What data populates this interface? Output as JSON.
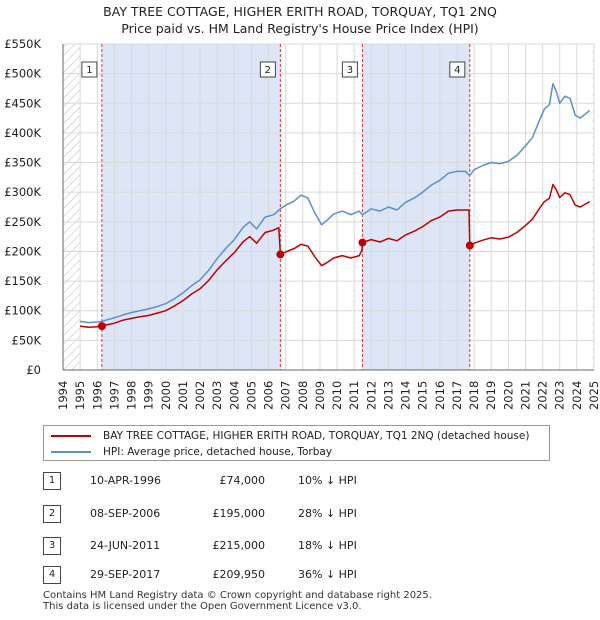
{
  "header": {
    "title": "BAY TREE COTTAGE, HIGHER ERITH ROAD, TORQUAY, TQ1 2NQ",
    "subtitle": "Price paid vs. HM Land Registry's House Price Index (HPI)"
  },
  "colors": {
    "property": "#c00000",
    "hpi": "#5b8fd0",
    "shade": "#dde6f6",
    "grid": "#d9d9d9",
    "marker_line": "#e03030"
  },
  "chart_data": {
    "type": "line",
    "title": "BAY TREE COTTAGE, HIGHER ERITH ROAD, TORQUAY, TQ1 2NQ",
    "subtitle": "Price paid vs. HM Land Registry's House Price Index (HPI)",
    "xlabel": "",
    "ylabel": "",
    "xlim": [
      1994,
      2025
    ],
    "ylim": [
      0,
      550000
    ],
    "x_ticks": [
      1994,
      1995,
      1996,
      1997,
      1998,
      1999,
      2000,
      2001,
      2002,
      2003,
      2004,
      2005,
      2006,
      2007,
      2008,
      2009,
      2010,
      2011,
      2012,
      2013,
      2014,
      2015,
      2016,
      2017,
      2018,
      2019,
      2020,
      2021,
      2022,
      2023,
      2024,
      2025
    ],
    "y_ticks": [
      {
        "value": 0,
        "label": "£0"
      },
      {
        "value": 50000,
        "label": "£50K"
      },
      {
        "value": 100000,
        "label": "£100K"
      },
      {
        "value": 150000,
        "label": "£150K"
      },
      {
        "value": 200000,
        "label": "£200K"
      },
      {
        "value": 250000,
        "label": "£250K"
      },
      {
        "value": 300000,
        "label": "£300K"
      },
      {
        "value": 350000,
        "label": "£350K"
      },
      {
        "value": 400000,
        "label": "£400K"
      },
      {
        "value": 450000,
        "label": "£450K"
      },
      {
        "value": 500000,
        "label": "£500K"
      },
      {
        "value": 550000,
        "label": "£550K"
      }
    ],
    "grid": true,
    "hatched_ranges": [
      [
        1994,
        1995.0
      ],
      [
        2024.9,
        2025
      ]
    ],
    "series": [
      {
        "name": "HPI: Average price, detached house, Torbay",
        "color": "#5b8fd0",
        "x": [
          1995.0,
          1995.5,
          1996.0,
          1996.27,
          1996.5,
          1997.0,
          1997.5,
          1998.0,
          1998.5,
          1999.0,
          1999.5,
          2000.0,
          2000.5,
          2001.0,
          2001.5,
          2002.0,
          2002.5,
          2003.0,
          2003.5,
          2004.0,
          2004.5,
          2004.9,
          2005.3,
          2005.8,
          2006.3,
          2006.69,
          2007.0,
          2007.5,
          2007.9,
          2008.3,
          2008.7,
          2009.1,
          2009.4,
          2009.8,
          2010.3,
          2010.8,
          2011.3,
          2011.48,
          2012.0,
          2012.5,
          2013.0,
          2013.5,
          2014.0,
          2014.5,
          2015.0,
          2015.5,
          2016.0,
          2016.5,
          2017.0,
          2017.5,
          2017.75,
          2018.0,
          2018.5,
          2019.0,
          2019.5,
          2020.0,
          2020.5,
          2021.0,
          2021.4,
          2021.8,
          2022.1,
          2022.4,
          2022.6,
          2022.8,
          2023.0,
          2023.3,
          2023.6,
          2023.9,
          2024.2,
          2024.5,
          2024.75
        ],
        "values": [
          82000,
          80000,
          81000,
          82000,
          84000,
          88000,
          93000,
          97000,
          100000,
          103000,
          107000,
          112000,
          120000,
          130000,
          142000,
          152000,
          168000,
          188000,
          205000,
          220000,
          240000,
          250000,
          238000,
          258000,
          262000,
          272000,
          278000,
          285000,
          295000,
          290000,
          265000,
          245000,
          252000,
          263000,
          268000,
          262000,
          268000,
          262000,
          272000,
          268000,
          275000,
          270000,
          283000,
          290000,
          300000,
          312000,
          320000,
          332000,
          335000,
          335000,
          328000,
          338000,
          345000,
          350000,
          348000,
          352000,
          362000,
          378000,
          392000,
          420000,
          440000,
          448000,
          483000,
          470000,
          450000,
          462000,
          458000,
          430000,
          425000,
          432000,
          438000
        ]
      },
      {
        "name": "BAY TREE COTTAGE, HIGHER ERITH ROAD, TORQUAY, TQ1 2NQ (detached house)",
        "color": "#c00000",
        "x": [
          1995.0,
          1995.5,
          1996.0,
          1996.27,
          1996.5,
          1997.0,
          1997.5,
          1998.0,
          1998.5,
          1999.0,
          1999.5,
          2000.0,
          2000.5,
          2001.0,
          2001.5,
          2002.0,
          2002.5,
          2003.0,
          2003.5,
          2004.0,
          2004.5,
          2004.9,
          2005.3,
          2005.8,
          2006.3,
          2006.6,
          2006.69,
          2007.0,
          2007.5,
          2007.9,
          2008.3,
          2008.7,
          2009.1,
          2009.4,
          2009.8,
          2010.3,
          2010.8,
          2011.3,
          2011.45,
          2011.48,
          2012.0,
          2012.5,
          2013.0,
          2013.5,
          2014.0,
          2014.5,
          2015.0,
          2015.5,
          2016.0,
          2016.5,
          2017.0,
          2017.5,
          2017.7,
          2017.75,
          2018.0,
          2018.5,
          2019.0,
          2019.5,
          2020.0,
          2020.5,
          2021.0,
          2021.4,
          2021.8,
          2022.1,
          2022.4,
          2022.6,
          2022.8,
          2023.0,
          2023.3,
          2023.6,
          2023.9,
          2024.2,
          2024.5,
          2024.75
        ],
        "values": [
          74000,
          72000,
          73000,
          74000,
          76000,
          79000,
          84000,
          87000,
          90000,
          92000,
          96000,
          100000,
          108000,
          117000,
          128000,
          137000,
          151000,
          169000,
          184000,
          198000,
          216000,
          225000,
          214000,
          232000,
          236000,
          240000,
          195000,
          199000,
          205000,
          212000,
          209000,
          191000,
          176000,
          181000,
          189000,
          193000,
          189000,
          193000,
          202000,
          215000,
          220000,
          216000,
          222000,
          218000,
          228000,
          234000,
          242000,
          252000,
          258000,
          268000,
          270000,
          270000,
          270000,
          209950,
          214000,
          219000,
          223000,
          221000,
          224000,
          232000,
          244000,
          254000,
          272000,
          284000,
          290000,
          313000,
          304000,
          291000,
          299000,
          296000,
          278000,
          275000,
          280000,
          284000
        ]
      }
    ],
    "sales": [
      {
        "num": "1",
        "x": 1996.27,
        "value": 74000
      },
      {
        "num": "2",
        "x": 2006.69,
        "value": 195000
      },
      {
        "num": "3",
        "x": 2011.48,
        "value": 215000
      },
      {
        "num": "4",
        "x": 2017.75,
        "value": 209950
      }
    ]
  },
  "legend": {
    "items": [
      {
        "label": "BAY TREE COTTAGE, HIGHER ERITH ROAD, TORQUAY, TQ1 2NQ (detached house)"
      },
      {
        "label": "HPI: Average price, detached house, Torbay"
      }
    ]
  },
  "sales_table": {
    "rows": [
      {
        "num": "1",
        "date": "10-APR-1996",
        "price": "£74,000",
        "hpi": "10% ↓ HPI"
      },
      {
        "num": "2",
        "date": "08-SEP-2006",
        "price": "£195,000",
        "hpi": "28% ↓ HPI"
      },
      {
        "num": "3",
        "date": "24-JUN-2011",
        "price": "£215,000",
        "hpi": "18% ↓ HPI"
      },
      {
        "num": "4",
        "date": "29-SEP-2017",
        "price": "£209,950",
        "hpi": "36% ↓ HPI"
      }
    ]
  },
  "footer": {
    "line1": "Contains HM Land Registry data © Crown copyright and database right 2025.",
    "line2": "This data is licensed under the Open Government Licence v3.0."
  }
}
